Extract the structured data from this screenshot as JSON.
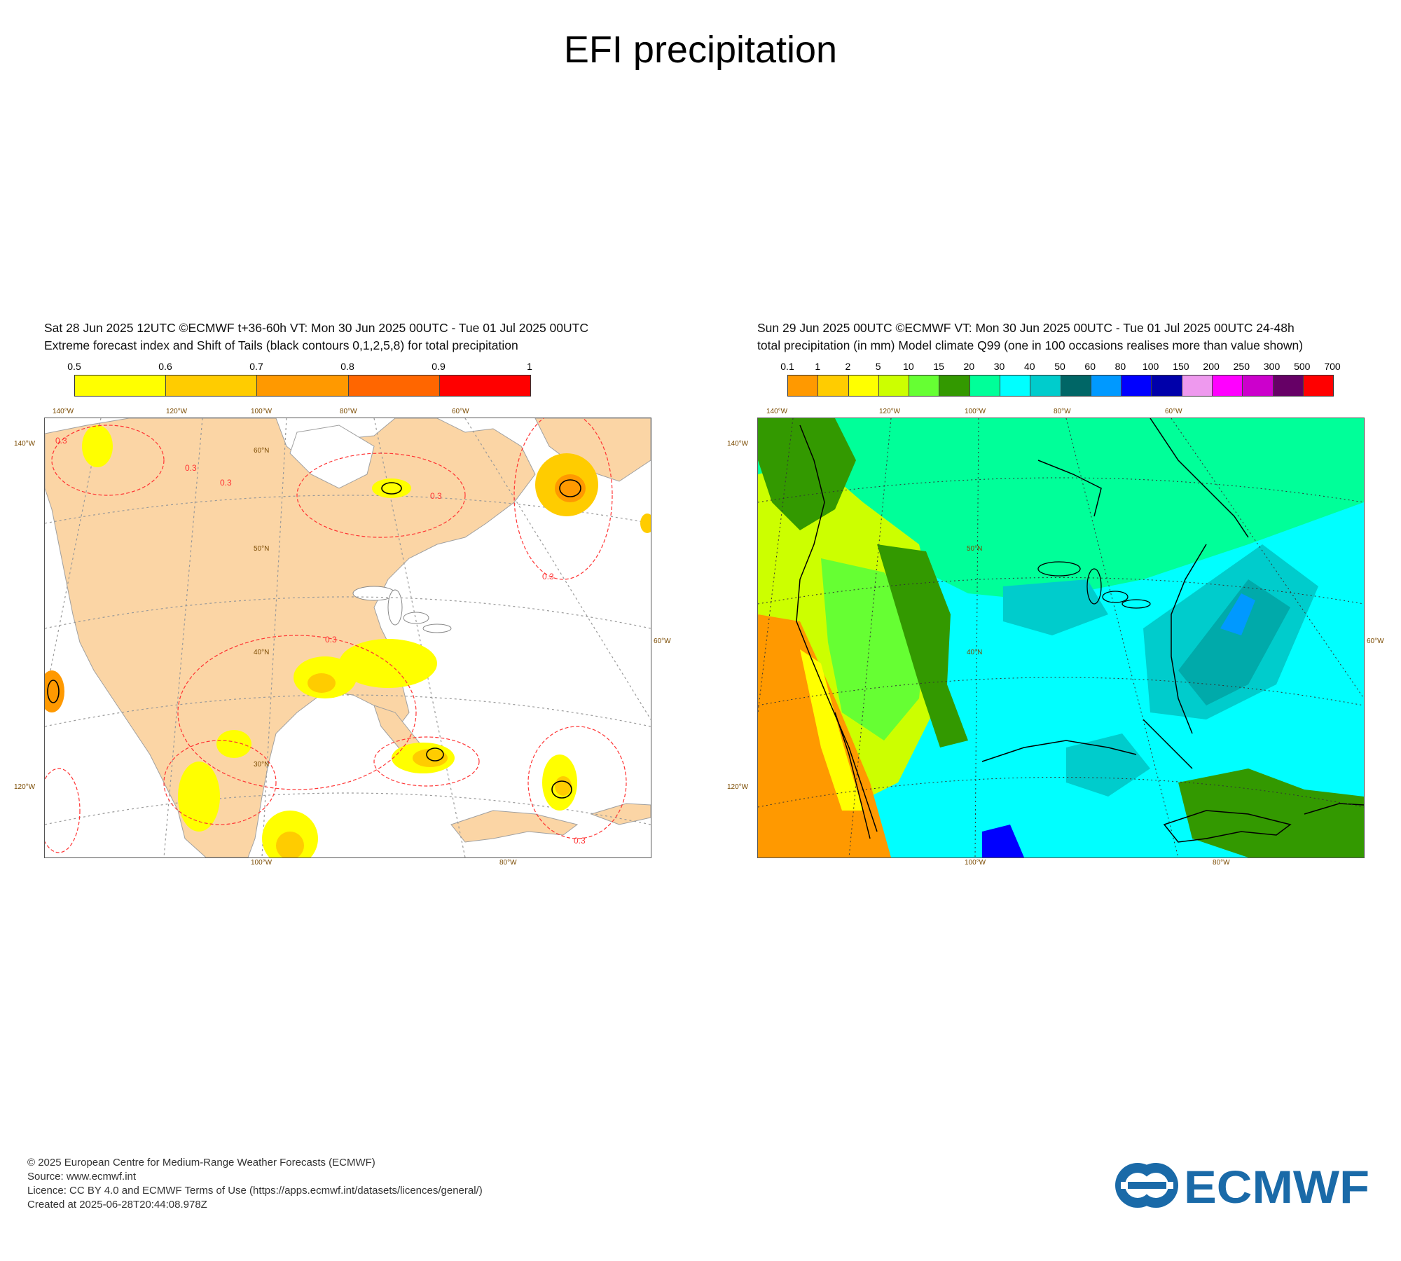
{
  "title": "EFI precipitation",
  "left": {
    "header_line1": "Sat 28 Jun 2025 12UTC ©ECMWF t+36-60h  VT: Mon 30 Jun 2025 00UTC - Tue 01 Jul 2025 00UTC",
    "header_line2": "Extreme forecast index and Shift of Tails (black contours 0,1,2,5,8) for total precipitation",
    "legend_ticks": [
      "0.5",
      "0.6",
      "0.7",
      "0.8",
      "0.9",
      "1"
    ],
    "legend_colors": [
      "#ffff00",
      "#ffcc00",
      "#ff9900",
      "#ff6600",
      "#ff0000"
    ],
    "contour_label": "0.3",
    "coords": {
      "top": [
        "140°W",
        "120°W",
        "100°W",
        "80°W",
        "60°W"
      ],
      "left": [
        "140°W",
        "120°W"
      ],
      "right": "60°W",
      "bottom": [
        "100°W",
        "80°W"
      ],
      "lat": [
        "60°N",
        "50°N",
        "40°N",
        "30°N"
      ]
    }
  },
  "right": {
    "header_line1": "Sun 29 Jun 2025 00UTC ©ECMWF VT: Mon 30 Jun 2025 00UTC - Tue 01 Jul 2025 00UTC   24-48h",
    "header_line2": "total precipitation (in mm)  Model climate Q99 (one in 100 occasions realises more than value shown)",
    "legend_ticks": [
      "0.1",
      "1",
      "2",
      "5",
      "10",
      "15",
      "20",
      "30",
      "40",
      "50",
      "60",
      "80",
      "100",
      "150",
      "200",
      "250",
      "300",
      "500",
      "700"
    ],
    "legend_colors": [
      "#ff9900",
      "#ffcc00",
      "#ffff00",
      "#ccff00",
      "#66ff33",
      "#339900",
      "#00ff99",
      "#00ffff",
      "#00cccc",
      "#006666",
      "#0099ff",
      "#0000ff",
      "#0000aa",
      "#ee99ee",
      "#ff00ff",
      "#cc00cc",
      "#660066",
      "#ff0000"
    ],
    "coords": {
      "top": [
        "140°W",
        "120°W",
        "100°W",
        "80°W",
        "60°W"
      ],
      "left": [
        "140°W",
        "120°W"
      ],
      "right": "60°W",
      "bottom": [
        "100°W",
        "80°W"
      ],
      "lat": [
        "50°N",
        "40°N"
      ]
    }
  },
  "footer": {
    "line1": "© 2025 European Centre for Medium-Range Weather Forecasts (ECMWF)",
    "line2": "Source: www.ecmwf.int",
    "line3": "Licence: CC BY 4.0 and ECMWF Terms of Use (https://apps.ecmwf.int/datasets/licences/general/)",
    "line4": "Created at 2025-06-28T20:44:08.978Z"
  },
  "logo_text": "ECMWF",
  "colors": {
    "land_efi": "#fbd5a5",
    "ocean": "#ffffff",
    "contour": "#ff3333",
    "coord_label": "#7a4a00",
    "logo": "#1a6aa8"
  }
}
